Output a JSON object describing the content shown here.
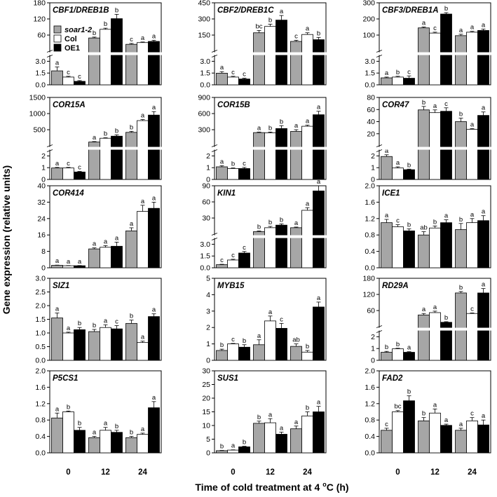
{
  "figure": {
    "ylabel": "Gene expression (relative units)",
    "xlabel_main": "Time of cold treatment at 4 ",
    "xlabel_sup": "o",
    "xlabel_end": "C (h)",
    "legend": [
      "soar1-2",
      "Col",
      "OE1"
    ],
    "legend_colors": [
      "#a6a6a6",
      "#ffffff",
      "#000000"
    ]
  },
  "chart_data": [
    {
      "type": "bar",
      "title": "CBF1/DREB1B",
      "categories": [
        "0",
        "12",
        "24"
      ],
      "series": [
        {
          "name": "soar1-2",
          "values": [
            1.8,
            58,
            36
          ],
          "err": [
            0.5,
            3,
            3
          ]
        },
        {
          "name": "Col",
          "values": [
            1.0,
            88,
            42
          ],
          "err": [
            0.1,
            4,
            2
          ]
        },
        {
          "name": "OE1",
          "values": [
            0.45,
            125,
            46
          ],
          "err": [
            0.1,
            15,
            4
          ]
        }
      ],
      "letters": [
        [
          "a",
          "b",
          "c"
        ],
        [
          "c",
          "b",
          "a"
        ],
        [
          "c",
          "b",
          "a"
        ]
      ],
      "broken": true,
      "lower_ticks": [
        "0.0",
        "1.5",
        "3.0"
      ],
      "upper_ticks": [
        "60",
        "120",
        "180"
      ],
      "lower_max": 3.7,
      "upper_min": 12,
      "upper_max": 180
    },
    {
      "type": "bar",
      "title": "CBF2/DREB1C",
      "categories": [
        "0",
        "12",
        "24"
      ],
      "series": [
        {
          "name": "soar1-2",
          "values": [
            1.5,
            190,
            115
          ],
          "err": [
            0.2,
            20,
            10
          ]
        },
        {
          "name": "Col",
          "values": [
            1.0,
            245,
            175
          ],
          "err": [
            0.1,
            20,
            15
          ]
        },
        {
          "name": "OE1",
          "values": [
            0.75,
            300,
            130
          ],
          "err": [
            0.1,
            40,
            20
          ]
        }
      ],
      "letters": [
        [
          "a",
          "bc",
          "c"
        ],
        [
          "c",
          "b",
          "a"
        ],
        [
          "c",
          "a",
          "b"
        ]
      ],
      "broken": true,
      "lower_ticks": [
        "0.0",
        "1.5",
        "3.0"
      ],
      "upper_ticks": [
        "150",
        "300",
        "450"
      ],
      "lower_max": 3.7,
      "upper_min": 30,
      "upper_max": 450
    },
    {
      "type": "bar",
      "title": "CBF3/DREB1A",
      "categories": [
        "0",
        "12",
        "24"
      ],
      "series": [
        {
          "name": "soar1-2",
          "values": [
            0.9,
            155,
            110
          ],
          "err": [
            0.1,
            5,
            8
          ]
        },
        {
          "name": "Col",
          "values": [
            1.0,
            125,
            130
          ],
          "err": [
            0.1,
            5,
            5
          ]
        },
        {
          "name": "OE1",
          "values": [
            0.85,
            235,
            140
          ],
          "err": [
            0.3,
            8,
            8
          ]
        }
      ],
      "letters": [
        [
          "a",
          "a",
          "a"
        ],
        [
          "b",
          "c",
          "a"
        ],
        [
          "c",
          "b",
          "a"
        ]
      ],
      "broken": true,
      "lower_ticks": [
        "0.0",
        "1.5",
        "3.0"
      ],
      "upper_ticks": [
        "100",
        "200",
        "300"
      ],
      "lower_max": 3.7,
      "upper_min": 20,
      "upper_max": 300
    },
    {
      "type": "bar",
      "title": "COR15A",
      "categories": [
        "0",
        "12",
        "24"
      ],
      "series": [
        {
          "name": "soar1-2",
          "values": [
            1.0,
            210,
            490
          ],
          "err": [
            0.05,
            15,
            30
          ]
        },
        {
          "name": "Col",
          "values": [
            1.0,
            320,
            830
          ],
          "err": [
            0.05,
            15,
            30
          ]
        },
        {
          "name": "OE1",
          "values": [
            0.65,
            380,
            990
          ],
          "err": [
            0.05,
            40,
            100
          ]
        }
      ],
      "letters": [
        [
          "a",
          "a",
          "b"
        ],
        [
          "c",
          "b",
          "a"
        ],
        [
          "c",
          "b",
          "a"
        ]
      ],
      "broken": true,
      "lower_ticks": [
        "0",
        "1",
        "2"
      ],
      "upper_ticks": [
        "500",
        "1000",
        "1500"
      ],
      "lower_max": 2.5,
      "upper_min": 100,
      "upper_max": 1500
    },
    {
      "type": "bar",
      "title": "COR15B",
      "categories": [
        "0",
        "12",
        "24"
      ],
      "series": [
        {
          "name": "soar1-2",
          "values": [
            1.1,
            290,
            310
          ],
          "err": [
            0.1,
            10,
            30
          ]
        },
        {
          "name": "Col",
          "values": [
            0.95,
            285,
            400
          ],
          "err": [
            0.05,
            15,
            20
          ]
        },
        {
          "name": "OE1",
          "values": [
            0.95,
            360,
            600
          ],
          "err": [
            0.1,
            50,
            60
          ]
        }
      ],
      "letters": [
        [
          "a",
          "a",
          "a"
        ],
        [
          "b",
          "b",
          "a"
        ],
        [
          "c",
          "b",
          "a"
        ]
      ],
      "broken": true,
      "lower_ticks": [
        "0",
        "1",
        "2"
      ],
      "upper_ticks": [
        "300",
        "600",
        "900"
      ],
      "lower_max": 2.5,
      "upper_min": 60,
      "upper_max": 900
    },
    {
      "type": "bar",
      "title": "COR47",
      "categories": [
        "0",
        "12",
        "24"
      ],
      "series": [
        {
          "name": "soar1-2",
          "values": [
            2.0,
            62,
            45
          ],
          "err": [
            0.15,
            5,
            5
          ]
        },
        {
          "name": "Col",
          "values": [
            1.0,
            58,
            34
          ],
          "err": [
            0.1,
            4,
            1
          ]
        },
        {
          "name": "OE1",
          "values": [
            0.85,
            60,
            54
          ],
          "err": [
            0.05,
            5,
            5
          ]
        }
      ],
      "letters": [
        [
          "a",
          "b",
          "b"
        ],
        [
          "a",
          "a",
          "a"
        ],
        [
          "b",
          "c",
          "a"
        ]
      ],
      "broken": true,
      "lower_ticks": [
        "0",
        "1",
        "2"
      ],
      "upper_ticks": [
        "20",
        "40",
        "60",
        "80"
      ],
      "lower_max": 2.5,
      "upper_min": 10,
      "upper_max": 80
    },
    {
      "type": "bar",
      "title": "COR414",
      "categories": [
        "0",
        "12",
        "24"
      ],
      "series": [
        {
          "name": "soar1-2",
          "values": [
            1.2,
            9.2,
            18
          ],
          "err": [
            0.1,
            0.5,
            1.5
          ]
        },
        {
          "name": "Col",
          "values": [
            1.0,
            10,
            27.5
          ],
          "err": [
            0.1,
            0.8,
            3
          ]
        },
        {
          "name": "OE1",
          "values": [
            1.0,
            10.5,
            29
          ],
          "err": [
            0.1,
            2,
            3
          ]
        }
      ],
      "letters": [
        [
          "a",
          "a",
          "a"
        ],
        [
          "a",
          "a",
          "a"
        ],
        [
          "a",
          "a",
          "a"
        ]
      ],
      "broken": false,
      "ticks": [
        "0",
        "8",
        "16",
        "24",
        "32",
        "40"
      ],
      "ymax": 40
    },
    {
      "type": "bar",
      "title": "KIN1",
      "categories": [
        "0",
        "12",
        "24"
      ],
      "series": [
        {
          "name": "soar1-2",
          "values": [
            0.4,
            19,
            25
          ],
          "err": [
            0.05,
            1,
            1
          ]
        },
        {
          "name": "Col",
          "values": [
            1.0,
            25,
            52
          ],
          "err": [
            0.1,
            2,
            4
          ]
        },
        {
          "name": "OE1",
          "values": [
            1.9,
            29,
            82
          ],
          "err": [
            0.2,
            2,
            8
          ]
        }
      ],
      "letters": [
        [
          "c",
          "b",
          "a"
        ],
        [
          "c",
          "b",
          "a"
        ],
        [
          "c",
          "b",
          "a"
        ]
      ],
      "broken": true,
      "lower_ticks": [
        "0.0",
        "1.5",
        "3.0"
      ],
      "upper_ticks": [
        "30",
        "60",
        "90"
      ],
      "lower_max": 3.7,
      "upper_min": 15,
      "upper_max": 90
    },
    {
      "type": "bar",
      "title": "ICE1",
      "categories": [
        "0",
        "12",
        "24"
      ],
      "series": [
        {
          "name": "soar1-2",
          "values": [
            1.1,
            0.8,
            0.93
          ],
          "err": [
            0.08,
            0.08,
            0.15
          ]
        },
        {
          "name": "Col",
          "values": [
            1.0,
            0.97,
            1.1
          ],
          "err": [
            0.05,
            0.05,
            0.1
          ]
        },
        {
          "name": "OE1",
          "values": [
            0.9,
            1.1,
            1.15
          ],
          "err": [
            0.05,
            0.07,
            0.12
          ]
        }
      ],
      "letters": [
        [
          "a",
          "ab",
          "b"
        ],
        [
          "c",
          "b",
          "a"
        ],
        [
          "b",
          "a",
          "a"
        ]
      ],
      "broken": false,
      "ticks": [
        "0.0",
        "0.4",
        "0.8",
        "1.2",
        "1.6",
        "2.0"
      ],
      "ymax": 2.0
    },
    {
      "type": "bar",
      "title": "SIZ1",
      "categories": [
        "0",
        "12",
        "24"
      ],
      "series": [
        {
          "name": "soar1-2",
          "values": [
            1.55,
            1.05,
            1.35
          ],
          "err": [
            0.18,
            0.08,
            0.12
          ]
        },
        {
          "name": "Col",
          "values": [
            1.0,
            1.2,
            0.65
          ],
          "err": [
            0.03,
            0.1,
            0.05
          ]
        },
        {
          "name": "OE1",
          "values": [
            1.12,
            1.15,
            1.6
          ],
          "err": [
            0.08,
            0.12,
            0.1
          ]
        }
      ],
      "letters": [
        [
          "a",
          "b",
          "b"
        ],
        [
          "a",
          "a",
          "a"
        ],
        [
          "b",
          "c",
          "a"
        ]
      ],
      "broken": false,
      "ticks": [
        "0.0",
        "0.5",
        "1.0",
        "1.5",
        "2.0",
        "2.5",
        "3.0"
      ],
      "ymax": 3.0
    },
    {
      "type": "bar",
      "title": "MYB15",
      "categories": [
        "0",
        "12",
        "24"
      ],
      "series": [
        {
          "name": "soar1-2",
          "values": [
            0.6,
            0.95,
            0.85
          ],
          "err": [
            0.08,
            0.3,
            0.15
          ]
        },
        {
          "name": "Col",
          "values": [
            1.0,
            2.4,
            0.5
          ],
          "err": [
            0.03,
            0.3,
            0.1
          ]
        },
        {
          "name": "OE1",
          "values": [
            0.8,
            1.95,
            3.25
          ],
          "err": [
            0.15,
            0.3,
            0.3
          ]
        }
      ],
      "letters": [
        [
          "b",
          "a",
          "ab"
        ],
        [
          "c",
          "a",
          "b"
        ],
        [
          "b",
          "c",
          "a"
        ]
      ],
      "broken": false,
      "ticks": [
        "0",
        "1",
        "2",
        "3",
        "4",
        "5"
      ],
      "ymax": 5
    },
    {
      "type": "bar",
      "title": "RD29A",
      "categories": [
        "0",
        "12",
        "24"
      ],
      "series": [
        {
          "name": "soar1-2",
          "values": [
            0.7,
            55,
            130
          ],
          "err": [
            0.08,
            5,
            5
          ]
        },
        {
          "name": "Col",
          "values": [
            1.0,
            63,
            60
          ],
          "err": [
            0.05,
            5,
            2
          ]
        },
        {
          "name": "OE1",
          "values": [
            0.7,
            30,
            130
          ],
          "err": [
            0.05,
            2,
            15
          ]
        }
      ],
      "letters": [
        [
          "b",
          "a",
          "b"
        ],
        [
          "b",
          "a",
          "c"
        ],
        [
          "a",
          "b",
          "a"
        ]
      ],
      "broken": true,
      "lower_ticks": [
        "0",
        "1",
        "2"
      ],
      "upper_ticks": [
        "60",
        "120",
        "180"
      ],
      "lower_max": 2.5,
      "upper_min": 15,
      "upper_max": 180
    },
    {
      "type": "bar",
      "title": "P5CS1",
      "categories": [
        "0",
        "12",
        "24"
      ],
      "series": [
        {
          "name": "soar1-2",
          "values": [
            0.85,
            0.37,
            0.37
          ],
          "err": [
            0.12,
            0.03,
            0.03
          ]
        },
        {
          "name": "Col",
          "values": [
            1.0,
            0.55,
            0.45
          ],
          "err": [
            0.02,
            0.07,
            0.03
          ]
        },
        {
          "name": "OE1",
          "values": [
            0.55,
            0.5,
            1.1
          ],
          "err": [
            0.07,
            0.05,
            0.15
          ]
        }
      ],
      "letters": [
        [
          "a",
          "a",
          "b"
        ],
        [
          "b",
          "a",
          "a"
        ],
        [
          "b",
          "b",
          "a"
        ]
      ],
      "broken": false,
      "ticks": [
        "0.0",
        "0.4",
        "0.8",
        "1.2",
        "1.6",
        "2.0"
      ],
      "ymax": 2.0
    },
    {
      "type": "bar",
      "title": "SUS1",
      "categories": [
        "0",
        "12",
        "24"
      ],
      "series": [
        {
          "name": "soar1-2",
          "values": [
            0.8,
            10.8,
            8.8
          ],
          "err": [
            0.1,
            0.8,
            1
          ]
        },
        {
          "name": "Col",
          "values": [
            1.0,
            11,
            13.5
          ],
          "err": [
            0.1,
            1.5,
            1.5
          ]
        },
        {
          "name": "OE1",
          "values": [
            2.2,
            6.8,
            15
          ],
          "err": [
            0.2,
            0.8,
            2
          ]
        }
      ],
      "letters": [
        [
          "b",
          "b",
          "a"
        ],
        [
          "a",
          "a",
          "b"
        ],
        [
          "b",
          "a",
          "a"
        ]
      ],
      "broken": false,
      "ticks": [
        "0",
        "5",
        "10",
        "15",
        "20",
        "25",
        "30"
      ],
      "ymax": 30
    },
    {
      "type": "bar",
      "title": "FAD2",
      "categories": [
        "0",
        "12",
        "24"
      ],
      "series": [
        {
          "name": "soar1-2",
          "values": [
            0.55,
            0.78,
            0.55
          ],
          "err": [
            0.05,
            0.08,
            0.05
          ]
        },
        {
          "name": "Col",
          "values": [
            1.0,
            0.97,
            0.78
          ],
          "err": [
            0.03,
            0.1,
            0.08
          ]
        },
        {
          "name": "OE1",
          "values": [
            1.27,
            0.67,
            0.68
          ],
          "err": [
            0.12,
            0.03,
            0.12
          ]
        }
      ],
      "letters": [
        [
          "c",
          "b",
          "a"
        ],
        [
          "bc",
          "a",
          "c"
        ],
        [
          "b",
          "a",
          "a"
        ]
      ],
      "broken": false,
      "ticks": [
        "0.0",
        "0.4",
        "0.8",
        "1.2",
        "1.6",
        "2.0"
      ],
      "ymax": 2.0
    }
  ]
}
